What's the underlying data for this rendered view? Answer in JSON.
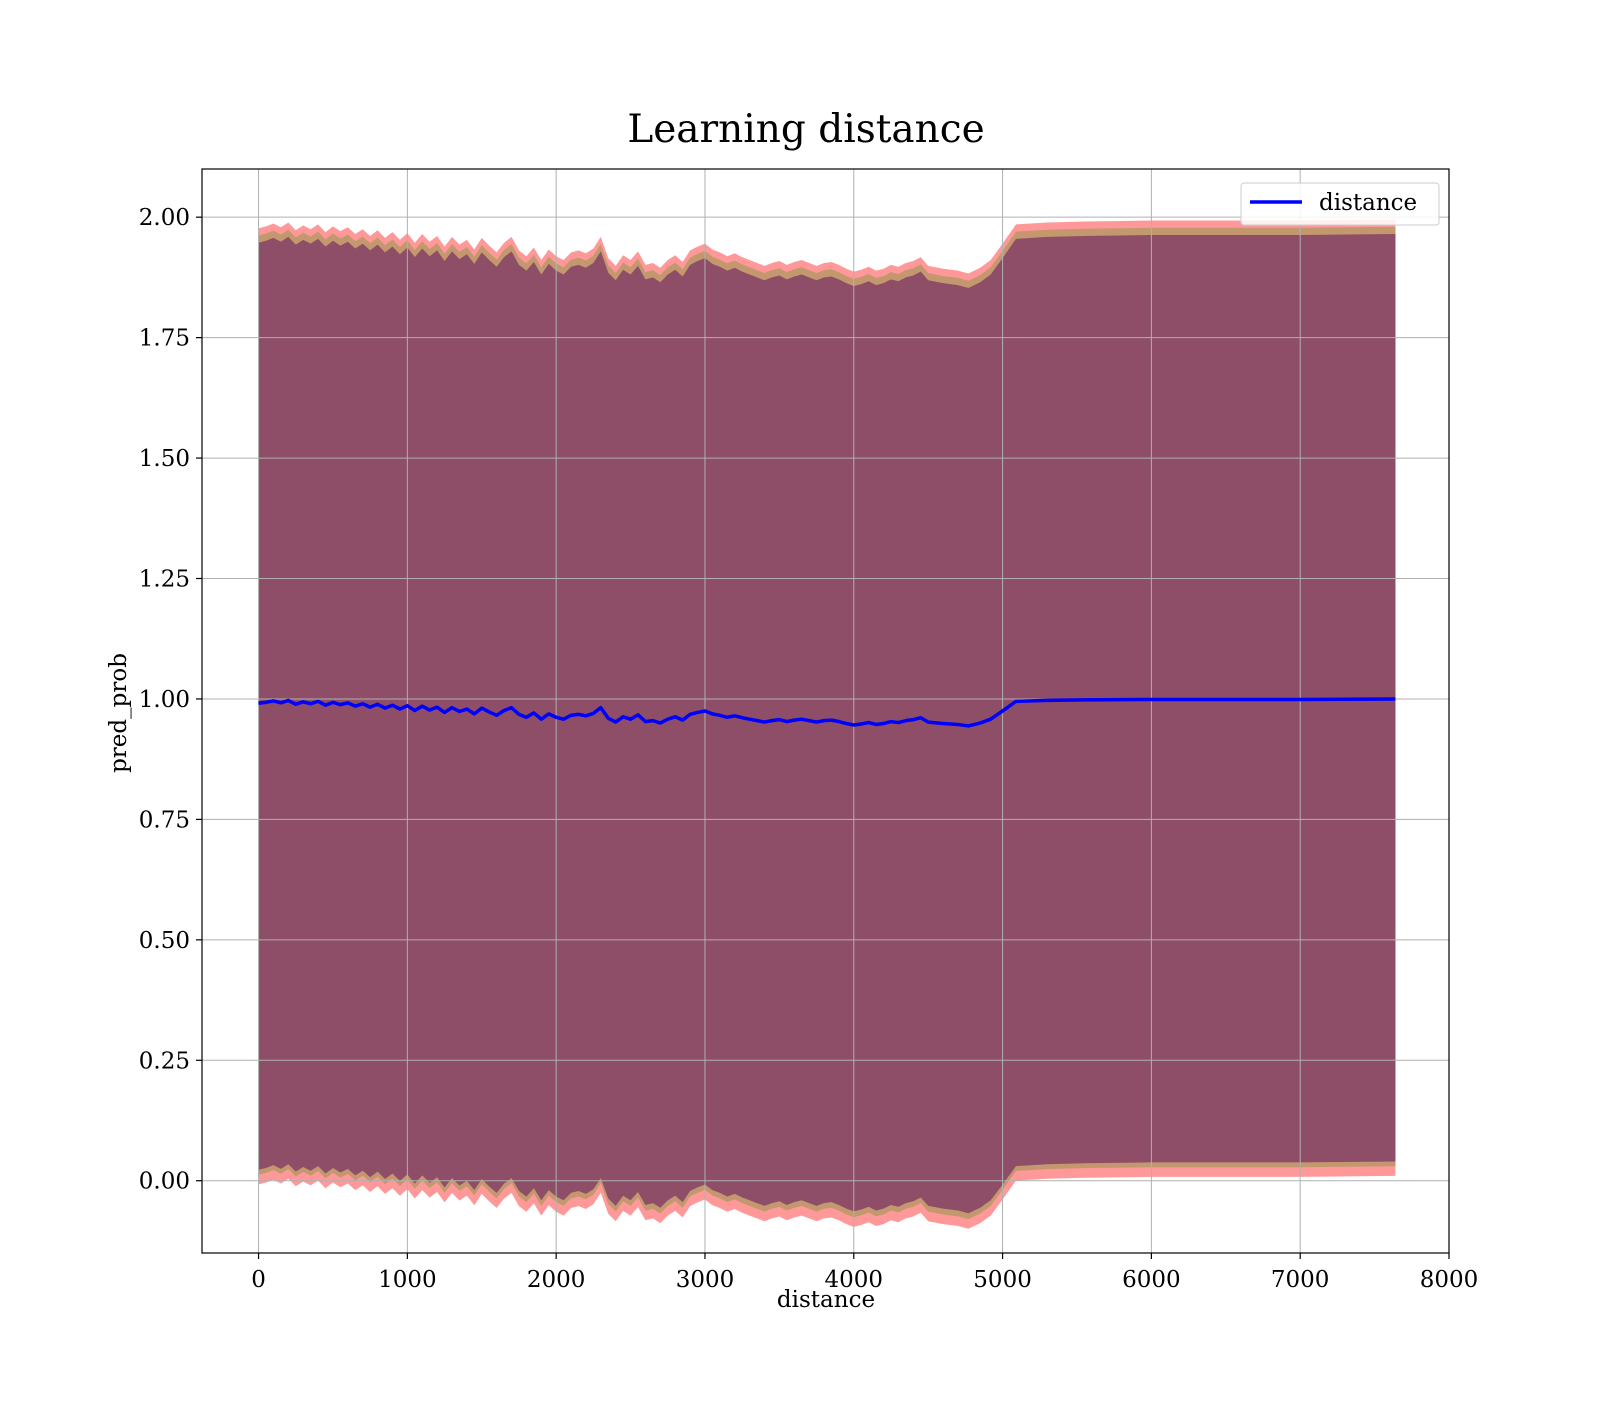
{
  "chart_data": {
    "type": "line",
    "title": "Learning distance",
    "xlabel": "distance",
    "ylabel": "pred_prob",
    "xlim": [
      -380,
      8000
    ],
    "ylim": [
      -0.15,
      2.1
    ],
    "xticks": [
      0,
      1000,
      2000,
      3000,
      4000,
      5000,
      6000,
      7000,
      8000
    ],
    "xtick_labels": [
      "0",
      "1000",
      "2000",
      "3000",
      "4000",
      "5000",
      "6000",
      "7000",
      "8000"
    ],
    "yticks": [
      0.0,
      0.25,
      0.5,
      0.75,
      1.0,
      1.25,
      1.5,
      1.75,
      2.0
    ],
    "ytick_labels": [
      "0.00",
      "0.25",
      "0.50",
      "0.75",
      "1.00",
      "1.25",
      "1.50",
      "1.75",
      "2.00"
    ],
    "grid": true,
    "legend": {
      "position": "top-right",
      "entries": [
        "distance"
      ]
    },
    "colors": {
      "line": "#0000ff",
      "band_outer": "#ff8080",
      "band_mid": "#c4986e",
      "band_inner": "#8b4a66"
    },
    "x": [
      0,
      50,
      100,
      150,
      200,
      250,
      300,
      350,
      400,
      450,
      500,
      550,
      600,
      650,
      700,
      750,
      800,
      850,
      900,
      950,
      1000,
      1050,
      1100,
      1150,
      1200,
      1250,
      1300,
      1350,
      1400,
      1450,
      1500,
      1550,
      1600,
      1650,
      1700,
      1750,
      1800,
      1850,
      1900,
      1950,
      2000,
      2050,
      2100,
      2150,
      2200,
      2250,
      2300,
      2350,
      2400,
      2450,
      2500,
      2550,
      2600,
      2650,
      2700,
      2750,
      2800,
      2850,
      2900,
      2950,
      3000,
      3050,
      3100,
      3150,
      3200,
      3250,
      3300,
      3350,
      3400,
      3450,
      3500,
      3550,
      3600,
      3650,
      3700,
      3750,
      3800,
      3850,
      3900,
      3950,
      4000,
      4050,
      4100,
      4150,
      4200,
      4250,
      4300,
      4350,
      4400,
      4450,
      4500,
      4600,
      4700,
      4770,
      4850,
      4920,
      5000,
      5090,
      5300,
      5550,
      6000,
      6500,
      7000,
      7640
    ],
    "series": [
      {
        "name": "distance",
        "values": [
          0.991,
          0.993,
          0.996,
          0.992,
          0.997,
          0.989,
          0.994,
          0.99,
          0.995,
          0.987,
          0.993,
          0.988,
          0.992,
          0.985,
          0.99,
          0.983,
          0.989,
          0.981,
          0.987,
          0.979,
          0.986,
          0.976,
          0.985,
          0.977,
          0.983,
          0.972,
          0.982,
          0.974,
          0.979,
          0.969,
          0.981,
          0.973,
          0.966,
          0.976,
          0.982,
          0.968,
          0.962,
          0.971,
          0.958,
          0.969,
          0.962,
          0.958,
          0.966,
          0.968,
          0.965,
          0.97,
          0.982,
          0.96,
          0.952,
          0.963,
          0.958,
          0.967,
          0.953,
          0.955,
          0.95,
          0.958,
          0.963,
          0.956,
          0.968,
          0.972,
          0.975,
          0.969,
          0.966,
          0.962,
          0.965,
          0.961,
          0.958,
          0.955,
          0.952,
          0.955,
          0.957,
          0.953,
          0.956,
          0.958,
          0.955,
          0.952,
          0.955,
          0.956,
          0.953,
          0.949,
          0.946,
          0.948,
          0.951,
          0.947,
          0.949,
          0.953,
          0.951,
          0.955,
          0.957,
          0.961,
          0.952,
          0.949,
          0.947,
          0.944,
          0.95,
          0.958,
          0.975,
          0.995,
          0.997,
          0.998,
          0.999,
          0.999,
          0.999,
          1.0
        ]
      }
    ]
  }
}
